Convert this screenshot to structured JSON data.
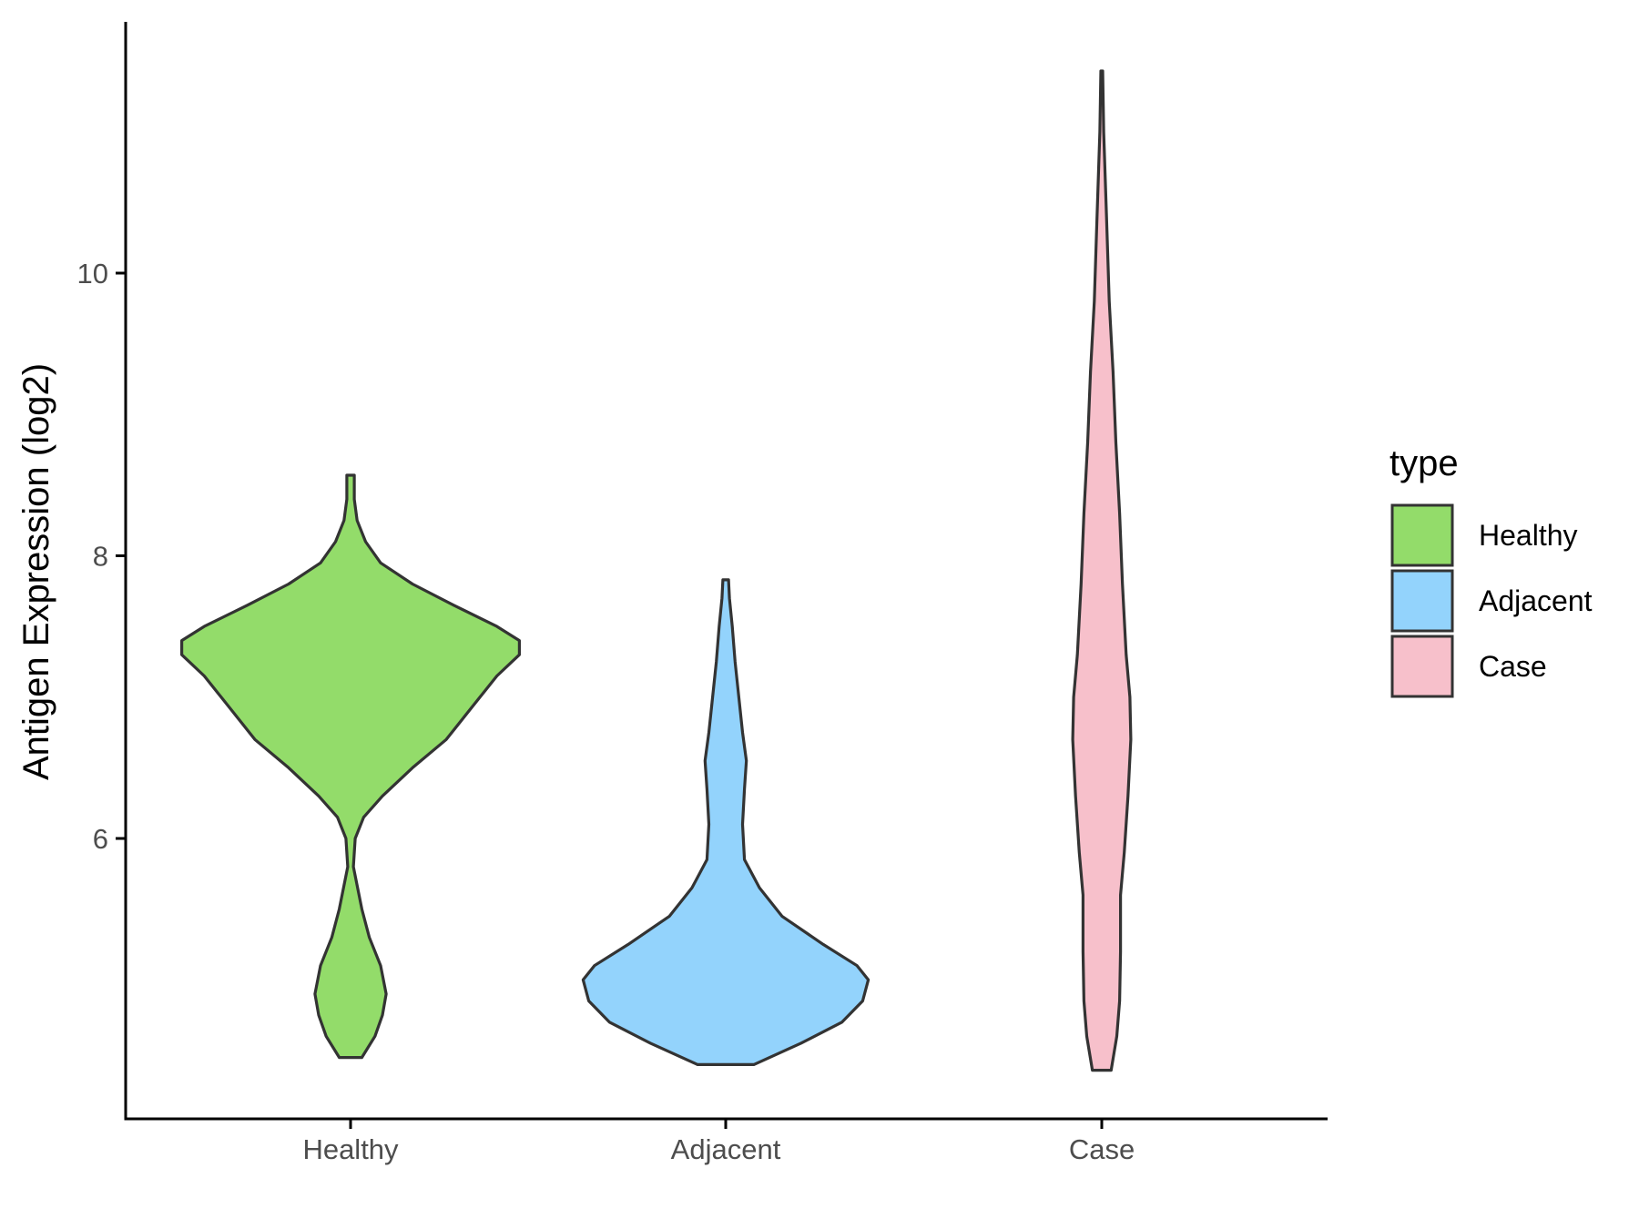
{
  "chart_data": {
    "type": "violin",
    "title": "",
    "xlabel": "",
    "ylabel": "Antigen Expression (log2)",
    "ylim": [
      4.0,
      11.8
    ],
    "yticks": [
      6,
      8,
      10
    ],
    "yticklabels": [
      "6",
      "8",
      "10"
    ],
    "categories": [
      "Healthy",
      "Adjacent",
      "Case"
    ],
    "grid": false,
    "legend": {
      "title": "type",
      "position": "right",
      "items": [
        {
          "label": "Healthy",
          "color": "#93DC6A"
        },
        {
          "label": "Adjacent",
          "color": "#93D3FC"
        },
        {
          "label": "Case",
          "color": "#F7C0CB"
        }
      ]
    },
    "series": [
      {
        "category": "Healthy",
        "color": "#93DC6A",
        "density": [
          [
            4.45,
            0.06
          ],
          [
            4.6,
            0.13
          ],
          [
            4.75,
            0.17
          ],
          [
            4.9,
            0.19
          ],
          [
            5.1,
            0.16
          ],
          [
            5.3,
            0.1
          ],
          [
            5.5,
            0.06
          ],
          [
            5.8,
            0.015
          ],
          [
            6.0,
            0.025
          ],
          [
            6.15,
            0.07
          ],
          [
            6.3,
            0.17
          ],
          [
            6.5,
            0.33
          ],
          [
            6.7,
            0.51
          ],
          [
            6.85,
            0.6
          ],
          [
            7.0,
            0.69
          ],
          [
            7.15,
            0.78
          ],
          [
            7.3,
            0.9
          ],
          [
            7.4,
            0.9
          ],
          [
            7.5,
            0.78
          ],
          [
            7.65,
            0.55
          ],
          [
            7.8,
            0.33
          ],
          [
            7.95,
            0.16
          ],
          [
            8.1,
            0.08
          ],
          [
            8.25,
            0.035
          ],
          [
            8.4,
            0.02
          ],
          [
            8.57,
            0.02
          ]
        ]
      },
      {
        "category": "Adjacent",
        "color": "#93D3FC",
        "density": [
          [
            4.4,
            0.15
          ],
          [
            4.55,
            0.4
          ],
          [
            4.7,
            0.62
          ],
          [
            4.85,
            0.73
          ],
          [
            5.0,
            0.76
          ],
          [
            5.1,
            0.7
          ],
          [
            5.25,
            0.52
          ],
          [
            5.45,
            0.3
          ],
          [
            5.65,
            0.18
          ],
          [
            5.85,
            0.1
          ],
          [
            6.1,
            0.09
          ],
          [
            6.35,
            0.1
          ],
          [
            6.55,
            0.11
          ],
          [
            6.75,
            0.09
          ],
          [
            7.0,
            0.07
          ],
          [
            7.25,
            0.05
          ],
          [
            7.5,
            0.035
          ],
          [
            7.7,
            0.02
          ],
          [
            7.83,
            0.015
          ]
        ]
      },
      {
        "category": "Case",
        "color": "#F7C0CB",
        "density": [
          [
            4.36,
            0.05
          ],
          [
            4.6,
            0.08
          ],
          [
            4.85,
            0.095
          ],
          [
            5.2,
            0.1
          ],
          [
            5.6,
            0.1
          ],
          [
            5.9,
            0.12
          ],
          [
            6.3,
            0.14
          ],
          [
            6.7,
            0.155
          ],
          [
            7.0,
            0.15
          ],
          [
            7.3,
            0.13
          ],
          [
            7.8,
            0.11
          ],
          [
            8.3,
            0.095
          ],
          [
            8.8,
            0.075
          ],
          [
            9.3,
            0.06
          ],
          [
            9.8,
            0.04
          ],
          [
            10.4,
            0.025
          ],
          [
            11.0,
            0.01
          ],
          [
            11.43,
            0.005
          ]
        ]
      }
    ]
  }
}
